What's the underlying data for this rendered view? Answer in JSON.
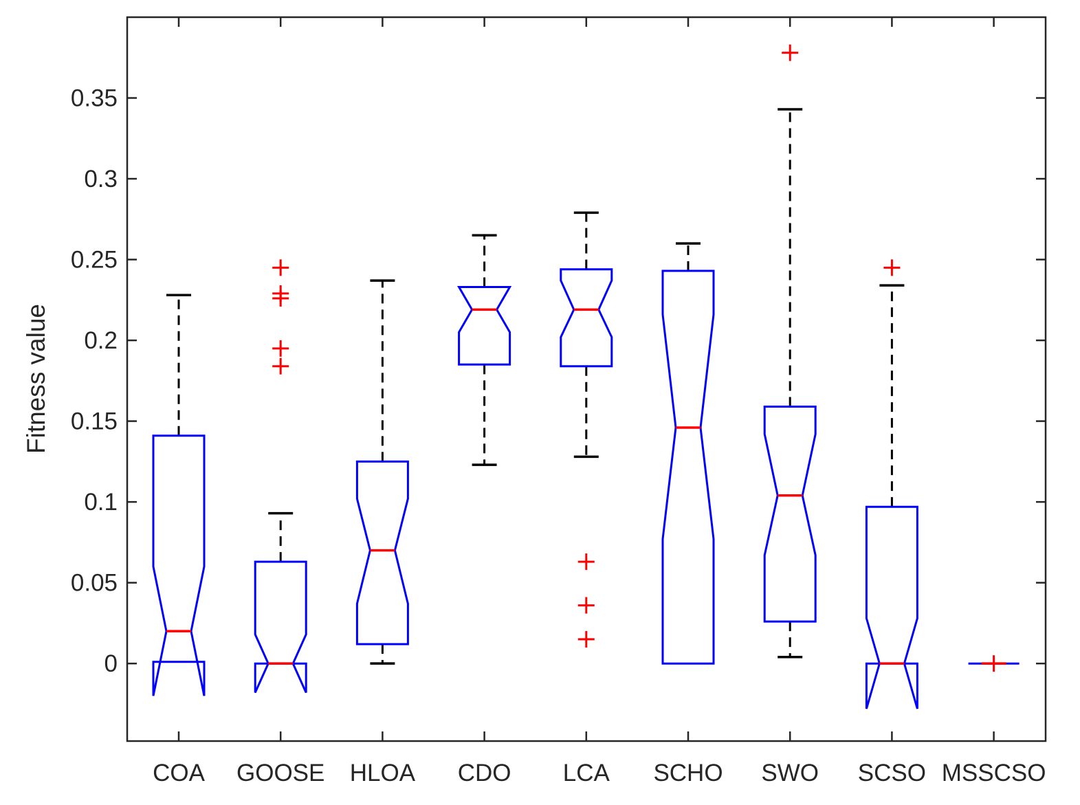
{
  "chart_data": {
    "type": "boxplot",
    "title": "",
    "xlabel": "",
    "ylabel": "Fitness value",
    "ylim": [
      -0.048,
      0.4
    ],
    "yticks": [
      0,
      0.05,
      0.1,
      0.15,
      0.2,
      0.25,
      0.3,
      0.35
    ],
    "ytick_labels": [
      "0",
      "0.05",
      "0.1",
      "0.15",
      "0.2",
      "0.25",
      "0.3",
      "0.35"
    ],
    "grid": false,
    "notched": true,
    "categories": [
      "COA",
      "GOOSE",
      "HLOA",
      "CDO",
      "LCA",
      "SCHO",
      "SWO",
      "SCSO",
      "MSSCSO"
    ],
    "boxes": [
      {
        "name": "COA",
        "q1": 0.001,
        "median": 0.02,
        "q3": 0.141,
        "notch_low": -0.02,
        "notch_high": 0.06,
        "whisker_low": 0.001,
        "whisker_high": 0.228,
        "outliers": []
      },
      {
        "name": "GOOSE",
        "q1": 0.0,
        "median": 0.0,
        "q3": 0.063,
        "notch_low": -0.018,
        "notch_high": 0.018,
        "whisker_low": 0.0,
        "whisker_high": 0.093,
        "outliers": [
          0.245,
          0.229,
          0.226,
          0.195,
          0.184
        ]
      },
      {
        "name": "HLOA",
        "q1": 0.012,
        "median": 0.07,
        "q3": 0.125,
        "notch_low": 0.037,
        "notch_high": 0.102,
        "whisker_low": 0.0,
        "whisker_high": 0.237,
        "outliers": []
      },
      {
        "name": "CDO",
        "q1": 0.185,
        "median": 0.219,
        "q3": 0.233,
        "notch_low": 0.205,
        "notch_high": 0.233,
        "whisker_low": 0.123,
        "whisker_high": 0.265,
        "outliers": []
      },
      {
        "name": "LCA",
        "q1": 0.184,
        "median": 0.219,
        "q3": 0.244,
        "notch_low": 0.202,
        "notch_high": 0.237,
        "whisker_low": 0.128,
        "whisker_high": 0.279,
        "outliers": [
          0.063,
          0.036,
          0.015
        ]
      },
      {
        "name": "SCHO",
        "q1": 0.0,
        "median": 0.146,
        "q3": 0.243,
        "notch_low": 0.077,
        "notch_high": 0.216,
        "whisker_low": 0.0,
        "whisker_high": 0.26,
        "outliers": []
      },
      {
        "name": "SWO",
        "q1": 0.026,
        "median": 0.104,
        "q3": 0.159,
        "notch_low": 0.067,
        "notch_high": 0.142,
        "whisker_low": 0.004,
        "whisker_high": 0.343,
        "outliers": [
          0.378
        ]
      },
      {
        "name": "SCSO",
        "q1": 0.0,
        "median": 0.0,
        "q3": 0.097,
        "notch_low": -0.028,
        "notch_high": 0.028,
        "whisker_low": 0.0,
        "whisker_high": 0.234,
        "outliers": [
          0.245
        ]
      },
      {
        "name": "MSSCSO",
        "q1": 0.0,
        "median": 0.0,
        "q3": 0.0,
        "notch_low": 0.0,
        "notch_high": 0.0,
        "whisker_low": 0.0,
        "whisker_high": 0.0,
        "outliers": [
          0.0
        ]
      }
    ]
  },
  "colors": {
    "box": "#0000ff",
    "median": "#ff0000",
    "whisker": "#000000",
    "outlier": "#ff0000",
    "axis": "#262626"
  }
}
